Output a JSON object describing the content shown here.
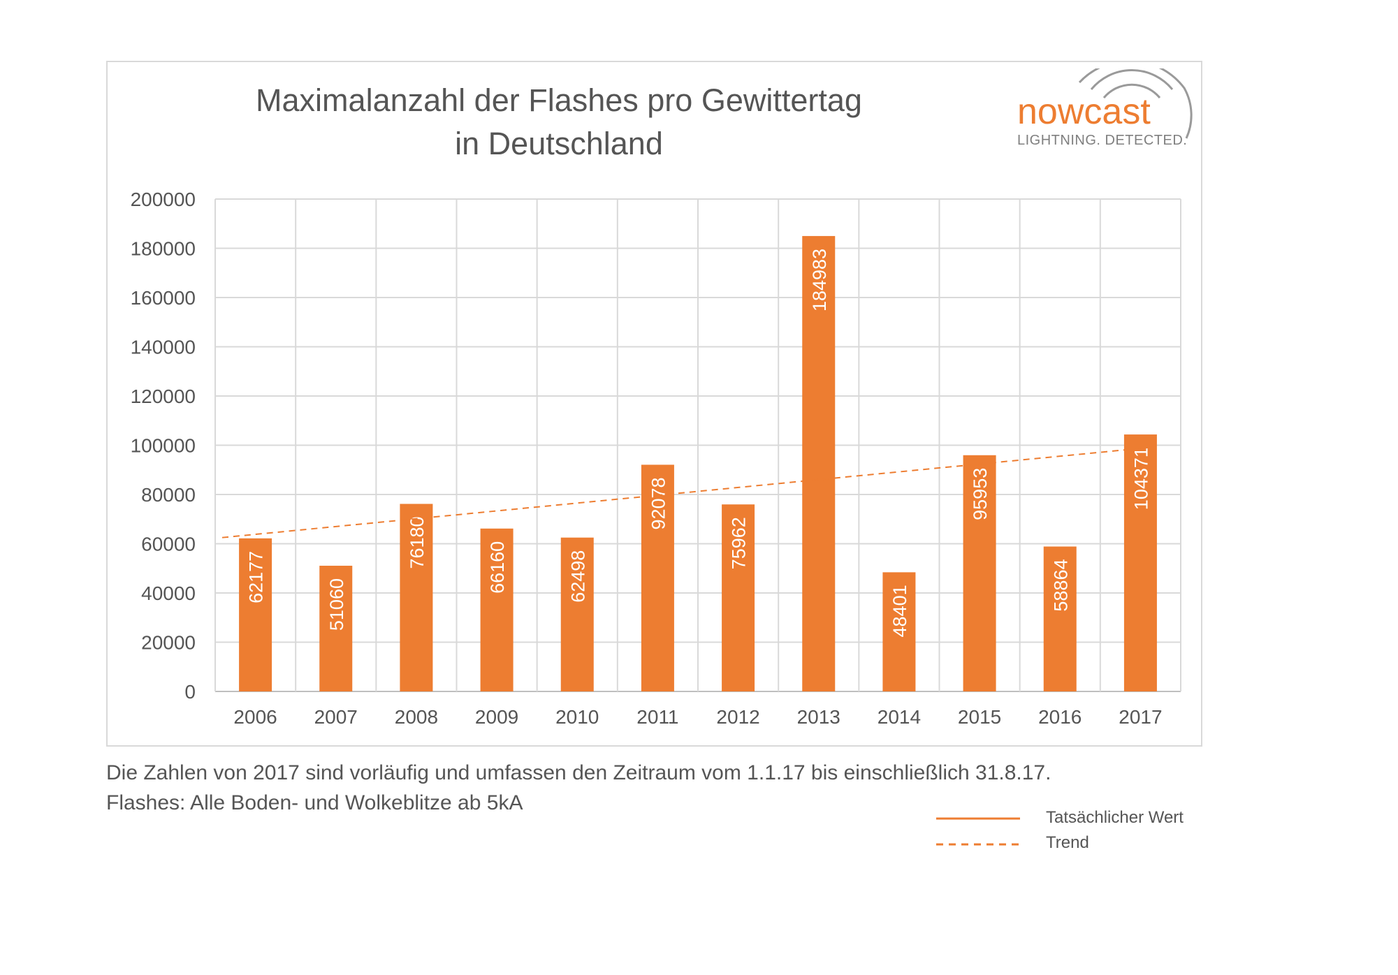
{
  "chart_data": {
    "type": "bar",
    "title_lines": [
      "Maximalanzahl der Flashes pro Gewittertag",
      "in Deutschland"
    ],
    "categories": [
      "2006",
      "2007",
      "2008",
      "2009",
      "2010",
      "2011",
      "2012",
      "2013",
      "2014",
      "2015",
      "2016",
      "2017"
    ],
    "values": [
      62177,
      51060,
      76180,
      66160,
      62498,
      92078,
      75962,
      184983,
      48401,
      95953,
      58864,
      104371
    ],
    "value_labels": [
      "62177",
      "51060",
      "76180",
      "66160",
      "62498",
      "92078",
      "75962",
      "184983",
      "48401",
      "95953",
      "58864",
      "104371"
    ],
    "y_ticks": [
      "0",
      "20000",
      "40000",
      "60000",
      "80000",
      "100000",
      "120000",
      "140000",
      "160000",
      "180000",
      "200000"
    ],
    "ylim": [
      0,
      200000
    ],
    "grid": true,
    "trend": {
      "start": 62500,
      "end": 99000
    },
    "legend": {
      "placement": "bottom-right",
      "actual_label": "Tatsächlicher Wert",
      "trend_label": "Trend"
    },
    "bar_color": "#ed7d31"
  },
  "logo": {
    "word": "nowcast",
    "tagline": "LIGHTNING. DETECTED."
  },
  "notes": {
    "line1": "Die Zahlen von 2017 sind vorläufig und umfassen den Zeitraum vom 1.1.17 bis einschließlich 31.8.17.",
    "line2": "Flashes: Alle Boden- und Wolkeblitze ab 5kA"
  }
}
